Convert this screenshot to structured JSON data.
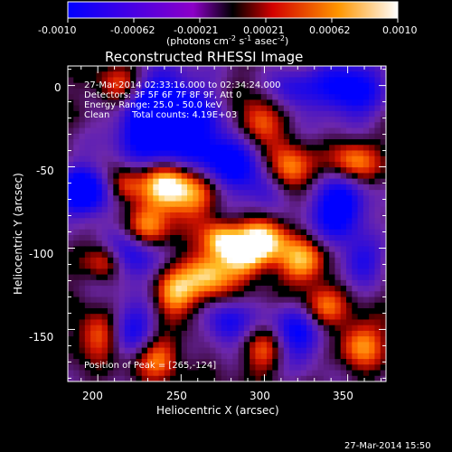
{
  "title": "Reconstructed RHESSI Image",
  "colorbar": {
    "ticks": [
      "-0.0010",
      "-0.00062",
      "-0.00021",
      "0.00021",
      "0.00062",
      "0.0010"
    ],
    "unit_label_main": "(photons cm",
    "unit_sup1": "-2",
    "unit_s": " s",
    "unit_sup2": "-1",
    "unit_asec": " asec",
    "unit_sup3": "-2",
    "unit_close": ")"
  },
  "info": {
    "time_range": "27-Mar-2014 02:33:16.000 to 02:34:24.000",
    "detectors": "Detectors: 3F 5F 6F 7F 8F 9F, Att 0",
    "energy_range": "Energy Range: 25.0 - 50.0 keV",
    "algorithm": "Clean",
    "total_counts": "Total counts: 4.19E+03",
    "peak_position": "Position of Peak = [265,-124]"
  },
  "axes": {
    "xlabel": "Heliocentric X (arcsec)",
    "ylabel": "Heliocentric Y (arcsec)",
    "xticks": [
      "200",
      "250",
      "300",
      "350"
    ],
    "yticks": [
      "0",
      "-50",
      "-100",
      "-150"
    ],
    "xrange": [
      182,
      373
    ],
    "yrange": [
      -182,
      12
    ]
  },
  "timestamp": "27-Mar-2014 15:50",
  "colors": {
    "background": "#000000",
    "text": "#ffffff"
  }
}
